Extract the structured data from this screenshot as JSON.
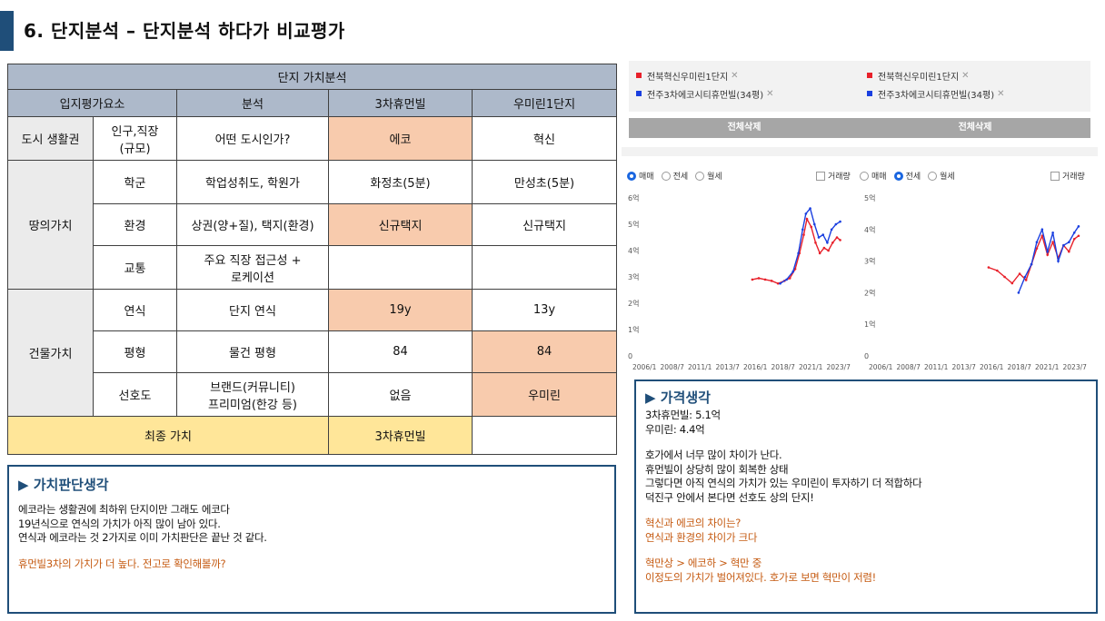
{
  "header": {
    "title": "6. 단지분석 – 단지분석 하다가 비교평가"
  },
  "table": {
    "title": "단지 가치분석",
    "headers": [
      "입지평가요소",
      "분석",
      "3차휴먼빌",
      "우미린1단지"
    ],
    "groups": {
      "city": "도시 생활권",
      "land": "땅의가치",
      "building": "건물가치"
    },
    "rows": [
      {
        "factor": "인구,직장\n(규모)",
        "analysis": "어떤 도시인가?",
        "a": "에코",
        "b": "혁신"
      },
      {
        "factor": "학군",
        "analysis": "학업성취도, 학원가",
        "a": "화정초(5분)",
        "b": "만성초(5분)"
      },
      {
        "factor": "환경",
        "analysis": "상권(양+질), 택지(환경)",
        "a": "신규택지",
        "b": "신규택지"
      },
      {
        "factor": "교통",
        "analysis": "주요 직장 접근성 +\n로케이션",
        "a": "",
        "b": ""
      },
      {
        "factor": "연식",
        "analysis": "단지 연식",
        "a": "19y",
        "b": "13y"
      },
      {
        "factor": "평형",
        "analysis": "물건 평형",
        "a": "84",
        "b": "84"
      },
      {
        "factor": "선호도",
        "analysis": "브랜드(커뮤니티)\n프리미엄(한강 등)",
        "a": "없음",
        "b": "우미린"
      }
    ],
    "final": {
      "label": "최종 가치",
      "a": "3차휴먼빌",
      "b": ""
    }
  },
  "memo_left": {
    "heading": "▶ 가치판단생각",
    "lines": [
      "에코라는 생활권에 최하위 단지이만 그래도 에코다",
      "19년식으로 연식의 가치가 아직 많이 남아 있다.",
      "연식과 에코라는 것 2가지로 이미 가치판단은 끝난 것 같다."
    ],
    "highlight": "휴먼빌3차의 가치가 더 높다. 전고로 확인해볼까?"
  },
  "memo_right": {
    "heading": "▶ 가격생각",
    "prices": [
      "3차휴먼빌: 5.1억",
      "우미린: 4.4억"
    ],
    "lines": [
      "호가에서 너무 많이 차이가 난다.",
      "휴먼빌이 상당히 많이 회복한 상태",
      "그렇다면 아직 연식의 가치가 있는 우미린이 투자하기 더 적합하다",
      "덕진구 안에서 본다면 선호도 상의 단지!"
    ],
    "q1": "혁신과 에코의 차이는?",
    "q2": "연식과 환경의 차이가 크다",
    "c1": "혁만상 > 에코하 > 혁만 중",
    "c2": "이정도의 가치가 벌어져있다. 호가로 보면 혁만이 저렴!"
  },
  "compare_left": {
    "chips": [
      {
        "label": "전북혁신우미린1단지",
        "color": "#e8202a"
      },
      {
        "label": "전주3차에코시티휴먼빌(34평)",
        "color": "#1a3fe0"
      }
    ],
    "delete_all": "전체삭제"
  },
  "compare_right": {
    "chips": [
      {
        "label": "전북혁신우미린1단지",
        "color": "#e8202a"
      },
      {
        "label": "전주3차에코시티휴먼빌(34평)",
        "color": "#1a3fe0"
      }
    ],
    "delete_all": "전체삭제"
  },
  "chart_options": {
    "left": {
      "options": [
        "매매",
        "전세",
        "월세"
      ],
      "selected": "매매",
      "volume": "거래량"
    },
    "right": {
      "options": [
        "매매",
        "전세",
        "월세"
      ],
      "selected": "전세",
      "volume": "거래량"
    }
  },
  "chart_data": [
    {
      "type": "line",
      "x_ticks": [
        "2006/1",
        "2008/7",
        "2011/1",
        "2013/7",
        "2016/1",
        "2018/7",
        "2021/1",
        "2023/7"
      ],
      "y_ticks": [
        "0",
        "1억",
        "2억",
        "3억",
        "4억",
        "5억",
        "6억"
      ],
      "ylim": [
        0,
        6
      ],
      "xlim": [
        2006.0,
        2025.0
      ],
      "series": [
        {
          "name": "전북혁신우미린1단지",
          "color": "#e8202a",
          "x": [
            2016.0,
            2016.6,
            2017.2,
            2017.8,
            2018.4,
            2019.0,
            2019.5,
            2020.0,
            2020.4,
            2020.8,
            2021.1,
            2021.5,
            2021.9,
            2022.3,
            2022.7,
            2023.1,
            2023.5,
            2023.9,
            2024.2
          ],
          "y": [
            2.9,
            2.95,
            2.9,
            2.85,
            2.75,
            2.85,
            2.95,
            3.3,
            3.9,
            4.6,
            5.2,
            4.9,
            4.3,
            3.9,
            4.1,
            4.0,
            4.3,
            4.5,
            4.4
          ]
        },
        {
          "name": "전주3차에코시티휴먼빌(34평)",
          "color": "#1a3fe0",
          "x": [
            2018.6,
            2019.2,
            2019.8,
            2020.3,
            2020.7,
            2021.0,
            2021.4,
            2021.8,
            2022.2,
            2022.6,
            2023.0,
            2023.4,
            2023.8,
            2024.2
          ],
          "y": [
            2.75,
            2.9,
            3.2,
            3.9,
            4.8,
            5.4,
            5.6,
            5.0,
            4.5,
            4.6,
            4.3,
            4.8,
            5.0,
            5.1
          ]
        }
      ]
    },
    {
      "type": "line",
      "x_ticks": [
        "2006/1",
        "2008/7",
        "2011/1",
        "2013/7",
        "2016/1",
        "2018/7",
        "2021/1",
        "2023/7"
      ],
      "y_ticks": [
        "0",
        "1억",
        "2억",
        "3억",
        "4억",
        "5억"
      ],
      "ylim": [
        0,
        5
      ],
      "xlim": [
        2006.0,
        2025.0
      ],
      "series": [
        {
          "name": "전북혁신우미린1단지",
          "color": "#e8202a",
          "x": [
            2016.0,
            2016.8,
            2017.5,
            2018.2,
            2018.9,
            2019.5,
            2020.0,
            2020.5,
            2021.0,
            2021.5,
            2022.0,
            2022.5,
            2023.0,
            2023.5,
            2024.0,
            2024.4
          ],
          "y": [
            2.8,
            2.7,
            2.5,
            2.3,
            2.6,
            2.4,
            2.9,
            3.4,
            3.8,
            3.2,
            3.6,
            3.1,
            3.5,
            3.3,
            3.7,
            3.8
          ]
        },
        {
          "name": "전주3차에코시티휴먼빌(34평)",
          "color": "#1a3fe0",
          "x": [
            2018.8,
            2019.4,
            2020.0,
            2020.5,
            2021.0,
            2021.5,
            2022.0,
            2022.5,
            2023.0,
            2023.5,
            2024.0,
            2024.4
          ],
          "y": [
            2.0,
            2.5,
            2.9,
            3.6,
            4.0,
            3.3,
            3.9,
            3.0,
            3.5,
            3.6,
            3.9,
            4.1
          ]
        }
      ]
    }
  ]
}
